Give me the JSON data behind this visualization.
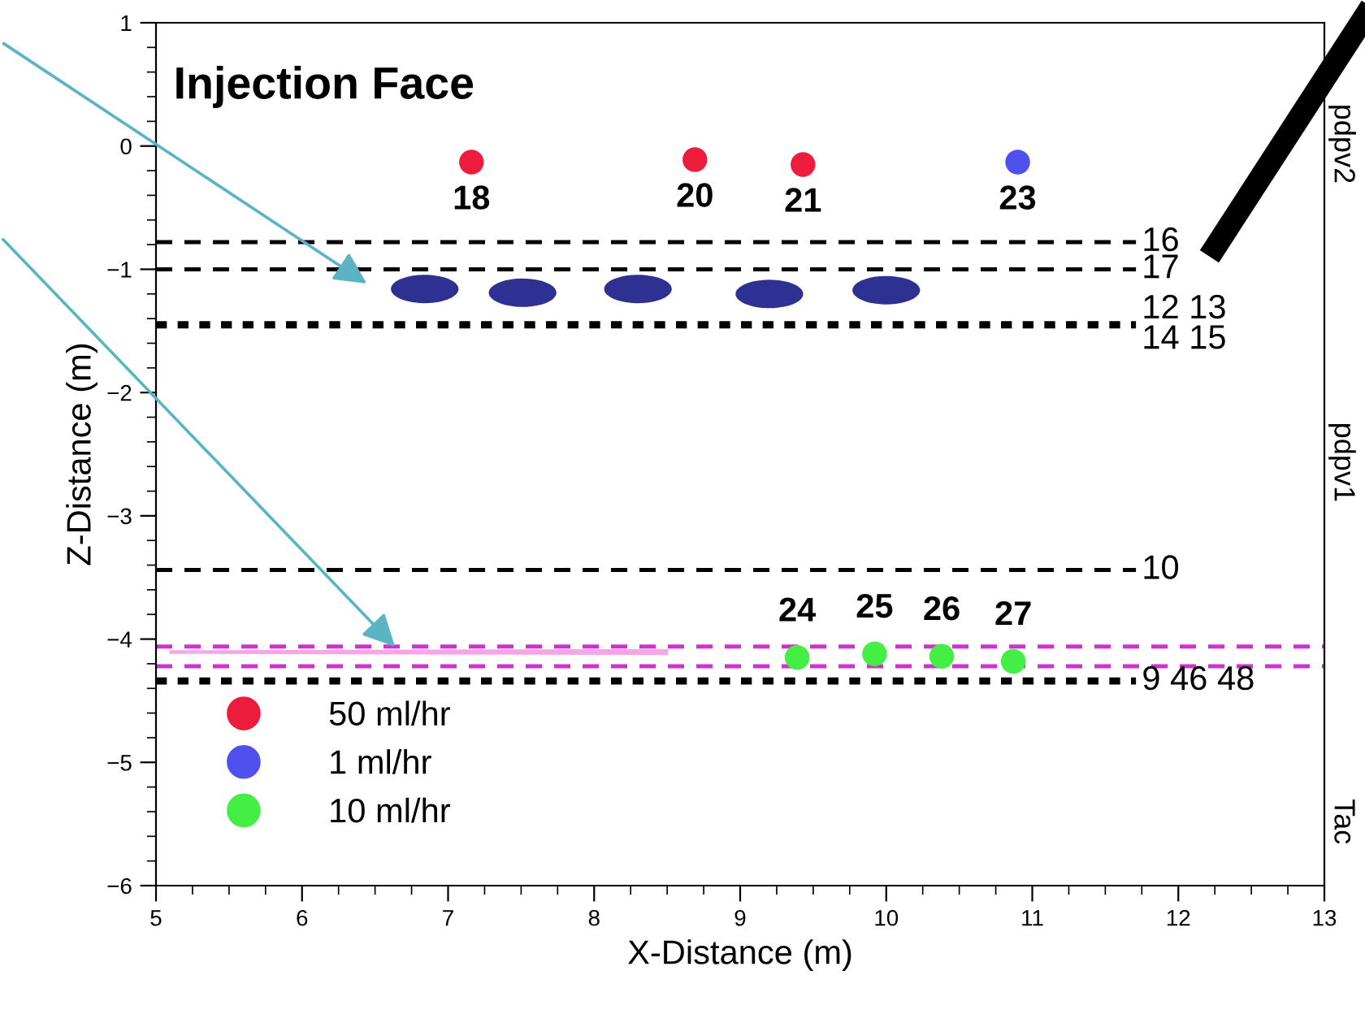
{
  "chart_data": {
    "type": "scatter",
    "title": "Injection Face",
    "xlabel": "X-Distance (m)",
    "ylabel": "Z-Distance (m)",
    "xlim": [
      5,
      13
    ],
    "xticks": [
      5,
      6,
      7,
      8,
      9,
      10,
      11,
      12,
      13
    ],
    "ylim": [
      -6,
      1
    ],
    "yticks": [
      -6,
      -5,
      -4,
      -3,
      -2,
      -1,
      0,
      1
    ],
    "grid": false,
    "legend": "bottom left",
    "marker": "circle",
    "series": [
      {
        "name": "50 ml/hr",
        "color": "#ee1c3c",
        "x": [
          7.16,
          8.69,
          9.43
        ],
        "values": [
          -0.13,
          -0.11,
          -0.15
        ]
      },
      {
        "name": "1 ml/hr",
        "color": "#5050ee",
        "x": [
          10.9
        ],
        "values": [
          -0.13
        ]
      },
      {
        "name": "10 ml/hr",
        "color": "#44ee44",
        "x": [
          9.39,
          9.92,
          10.38,
          10.87
        ],
        "values": [
          -4.15,
          -4.12,
          -4.14,
          -4.18
        ]
      },
      {
        "color": "#2e3192",
        "x": [
          6.84,
          7.51,
          8.3,
          9.2,
          10.0
        ],
        "values": [
          -1.16,
          -1.19,
          -1.16,
          -1.2,
          -1.17
        ]
      }
    ],
    "ref_lines": [
      {
        "axis": "y",
        "value": -0.78,
        "line_style": "dashed",
        "color": "#000000"
      },
      {
        "axis": "y",
        "value": -1.0,
        "line_style": "dashed",
        "color": "#000000"
      },
      {
        "axis": "y",
        "value": -1.45,
        "line_style": "dotted",
        "color": "#000000"
      },
      {
        "axis": "y",
        "value": -3.44,
        "line_style": "dashed",
        "color": "#000000"
      },
      {
        "axis": "y",
        "value": -4.06,
        "line_style": "dashed",
        "color": "#cc33cc"
      },
      {
        "axis": "y",
        "value": -4.22,
        "line_style": "dashed",
        "color": "#cc33cc"
      },
      {
        "axis": "y",
        "value": -4.34,
        "line_style": "dotted",
        "color": "#000000"
      }
    ],
    "annotations": [
      {
        "text": "16",
        "x": 11.75,
        "y": -0.78
      },
      {
        "text": "17",
        "x": 11.75,
        "y": -1.0
      },
      {
        "text": "12 13\n14 15",
        "x": 11.75,
        "y": -1.45
      },
      {
        "text": "10",
        "x": 11.75,
        "y": -3.44
      },
      {
        "text": "9 46 48",
        "x": 11.75,
        "y": -4.34
      },
      {
        "text": "18",
        "x": 7.16,
        "y": -0.13
      },
      {
        "text": "20",
        "x": 8.69,
        "y": -0.11
      },
      {
        "text": "21",
        "x": 9.43,
        "y": -0.15
      },
      {
        "text": "23",
        "x": 10.9,
        "y": -0.13
      },
      {
        "text": "24",
        "x": 9.39,
        "y": -4.15
      },
      {
        "text": "25",
        "x": 9.92,
        "y": -4.12
      },
      {
        "text": "26",
        "x": 10.38,
        "y": -4.14
      },
      {
        "text": "27",
        "x": 10.87,
        "y": -4.18
      },
      "pdpv2",
      "pdpv1",
      "Tac"
    ]
  }
}
